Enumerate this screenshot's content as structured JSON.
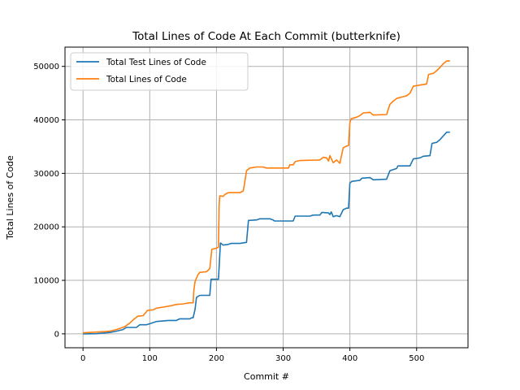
{
  "chart_data": {
    "type": "line",
    "title": "Total Lines of Code At Each Commit (butterknife)",
    "xlabel": "Commit #",
    "ylabel": "Total Lines of Code",
    "xlim": [
      -27,
      577
    ],
    "ylim": [
      -2600,
      53600
    ],
    "xticks": [
      0,
      100,
      200,
      300,
      400,
      500
    ],
    "yticks": [
      0,
      10000,
      20000,
      30000,
      40000,
      50000
    ],
    "grid": true,
    "legend_position": "top-left",
    "series": [
      {
        "name": "Total Test Lines of Code",
        "color": "#1f77b4",
        "points": [
          [
            0,
            0
          ],
          [
            20,
            30
          ],
          [
            40,
            250
          ],
          [
            50,
            500
          ],
          [
            60,
            800
          ],
          [
            65,
            1200
          ],
          [
            80,
            1200
          ],
          [
            85,
            1700
          ],
          [
            95,
            1700
          ],
          [
            110,
            2300
          ],
          [
            128,
            2500
          ],
          [
            140,
            2500
          ],
          [
            145,
            2800
          ],
          [
            160,
            2800
          ],
          [
            163,
            3000
          ],
          [
            165,
            3000
          ],
          [
            168,
            4600
          ],
          [
            170,
            6800
          ],
          [
            175,
            7200
          ],
          [
            190,
            7200
          ],
          [
            192,
            10200
          ],
          [
            203,
            10200
          ],
          [
            206,
            17000
          ],
          [
            210,
            16600
          ],
          [
            217,
            16700
          ],
          [
            222,
            16900
          ],
          [
            235,
            16900
          ],
          [
            245,
            17100
          ],
          [
            248,
            21200
          ],
          [
            260,
            21300
          ],
          [
            265,
            21500
          ],
          [
            280,
            21500
          ],
          [
            285,
            21300
          ],
          [
            287,
            21100
          ],
          [
            315,
            21100
          ],
          [
            318,
            22000
          ],
          [
            340,
            22000
          ],
          [
            345,
            22200
          ],
          [
            355,
            22200
          ],
          [
            358,
            22700
          ],
          [
            368,
            22600
          ],
          [
            370,
            22300
          ],
          [
            372,
            22800
          ],
          [
            375,
            21900
          ],
          [
            380,
            22100
          ],
          [
            385,
            21900
          ],
          [
            390,
            23200
          ],
          [
            395,
            23500
          ],
          [
            398,
            23500
          ],
          [
            400,
            28200
          ],
          [
            403,
            28500
          ],
          [
            415,
            28700
          ],
          [
            418,
            29100
          ],
          [
            430,
            29200
          ],
          [
            435,
            28800
          ],
          [
            455,
            28900
          ],
          [
            460,
            30500
          ],
          [
            470,
            30900
          ],
          [
            472,
            31400
          ],
          [
            480,
            31400
          ],
          [
            490,
            31400
          ],
          [
            495,
            32700
          ],
          [
            505,
            32900
          ],
          [
            510,
            33200
          ],
          [
            520,
            33300
          ],
          [
            523,
            35600
          ],
          [
            530,
            35800
          ],
          [
            535,
            36300
          ],
          [
            540,
            37000
          ],
          [
            545,
            37700
          ],
          [
            550,
            37700
          ]
        ]
      },
      {
        "name": "Total Lines of Code",
        "color": "#ff7f0e",
        "points": [
          [
            0,
            200
          ],
          [
            15,
            300
          ],
          [
            30,
            400
          ],
          [
            40,
            500
          ],
          [
            50,
            800
          ],
          [
            55,
            1000
          ],
          [
            62,
            1300
          ],
          [
            70,
            2000
          ],
          [
            75,
            2600
          ],
          [
            82,
            3300
          ],
          [
            90,
            3400
          ],
          [
            97,
            4400
          ],
          [
            105,
            4500
          ],
          [
            110,
            4800
          ],
          [
            120,
            5000
          ],
          [
            130,
            5200
          ],
          [
            140,
            5500
          ],
          [
            150,
            5600
          ],
          [
            160,
            5800
          ],
          [
            165,
            5800
          ],
          [
            166,
            8000
          ],
          [
            168,
            9800
          ],
          [
            172,
            11000
          ],
          [
            175,
            11500
          ],
          [
            185,
            11600
          ],
          [
            190,
            12200
          ],
          [
            193,
            15800
          ],
          [
            200,
            16000
          ],
          [
            203,
            16200
          ],
          [
            204,
            24000
          ],
          [
            205,
            25800
          ],
          [
            210,
            25700
          ],
          [
            213,
            26100
          ],
          [
            218,
            26400
          ],
          [
            235,
            26400
          ],
          [
            240,
            26700
          ],
          [
            242,
            28000
          ],
          [
            245,
            30500
          ],
          [
            250,
            31000
          ],
          [
            260,
            31200
          ],
          [
            270,
            31200
          ],
          [
            275,
            31000
          ],
          [
            295,
            31000
          ],
          [
            308,
            31000
          ],
          [
            310,
            31600
          ],
          [
            315,
            31600
          ],
          [
            318,
            32200
          ],
          [
            325,
            32400
          ],
          [
            355,
            32500
          ],
          [
            360,
            33000
          ],
          [
            365,
            32900
          ],
          [
            368,
            32300
          ],
          [
            370,
            33300
          ],
          [
            375,
            32000
          ],
          [
            380,
            32500
          ],
          [
            385,
            31900
          ],
          [
            390,
            34800
          ],
          [
            395,
            35100
          ],
          [
            398,
            35200
          ],
          [
            400,
            39500
          ],
          [
            402,
            40200
          ],
          [
            410,
            40500
          ],
          [
            415,
            40800
          ],
          [
            420,
            41300
          ],
          [
            430,
            41400
          ],
          [
            435,
            40900
          ],
          [
            455,
            41000
          ],
          [
            460,
            42900
          ],
          [
            465,
            43500
          ],
          [
            470,
            44000
          ],
          [
            485,
            44500
          ],
          [
            490,
            45000
          ],
          [
            495,
            46300
          ],
          [
            505,
            46500
          ],
          [
            515,
            46700
          ],
          [
            518,
            48500
          ],
          [
            525,
            48700
          ],
          [
            530,
            49200
          ],
          [
            535,
            49800
          ],
          [
            540,
            50500
          ],
          [
            545,
            51000
          ],
          [
            550,
            51000
          ]
        ]
      }
    ]
  }
}
